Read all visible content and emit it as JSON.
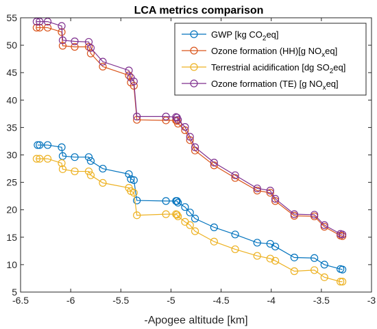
{
  "chart_data": {
    "type": "line",
    "title": "LCA metrics comparison",
    "xlabel": "-Apogee altitude [km]",
    "ylabel": "",
    "xlim": [
      -6.5,
      -3
    ],
    "ylim": [
      5,
      55
    ],
    "xticks": [
      "-6.5",
      "-6",
      "-5.5",
      "-5",
      "-4.5",
      "-4",
      "-3.5",
      "-3"
    ],
    "yticks": [
      "5",
      "10",
      "15",
      "20",
      "25",
      "30",
      "35",
      "40",
      "45",
      "50",
      "55"
    ],
    "grid": false,
    "legend_position": "top-right",
    "series": [
      {
        "name": "GWP [kg CO2eq]",
        "legend": {
          "main": "GWP [kg CO",
          "sub": "2",
          "tail": "eq]"
        },
        "color": "#0072BD",
        "x": [
          -6.33,
          -6.31,
          -6.23,
          -6.09,
          -6.08,
          -5.96,
          -5.82,
          -5.8,
          -5.68,
          -5.42,
          -5.4,
          -5.37,
          -5.34,
          -5.05,
          -4.95,
          -4.94,
          -4.93,
          -4.86,
          -4.81,
          -4.76,
          -4.57,
          -4.36,
          -4.14,
          -4.01,
          -3.96,
          -3.77,
          -3.57,
          -3.47,
          -3.31,
          -3.29
        ],
        "y": [
          31.8,
          31.8,
          31.8,
          31.4,
          29.8,
          29.6,
          29.6,
          28.9,
          27.5,
          26.5,
          25.6,
          25.4,
          21.7,
          21.6,
          21.6,
          21.6,
          21.3,
          20.5,
          19.5,
          18.4,
          16.8,
          15.5,
          14.0,
          13.8,
          13.3,
          11.3,
          11.2,
          10.0,
          9.2,
          9.1
        ]
      },
      {
        "name": "Ozone formation (HH)[g NOxeq]",
        "legend": {
          "main": "Ozone formation (HH)[g NO",
          "sub": "x",
          "tail": "eq]"
        },
        "color": "#D95319",
        "x": [
          -6.34,
          -6.31,
          -6.23,
          -6.09,
          -6.08,
          -5.96,
          -5.82,
          -5.8,
          -5.68,
          -5.42,
          -5.4,
          -5.37,
          -5.34,
          -5.05,
          -4.95,
          -4.94,
          -4.93,
          -4.86,
          -4.81,
          -4.76,
          -4.57,
          -4.36,
          -4.14,
          -4.01,
          -3.96,
          -3.77,
          -3.57,
          -3.47,
          -3.31,
          -3.29
        ],
        "y": [
          53.2,
          53.2,
          53.2,
          52.4,
          49.9,
          49.7,
          49.7,
          48.5,
          46.1,
          44.5,
          43.2,
          42.6,
          36.4,
          36.3,
          36.3,
          36.2,
          35.7,
          34.5,
          32.7,
          30.8,
          28.1,
          25.8,
          23.5,
          23.1,
          21.6,
          18.9,
          18.8,
          16.9,
          15.3,
          15.2
        ]
      },
      {
        "name": "Terrestrial acidification [dg SO2eq]",
        "legend": {
          "main": "Terrestrial acidification [dg SO",
          "sub": "2",
          "tail": "eq]"
        },
        "color": "#EDB120",
        "x": [
          -6.34,
          -6.31,
          -6.23,
          -6.09,
          -6.08,
          -5.96,
          -5.82,
          -5.8,
          -5.68,
          -5.42,
          -5.4,
          -5.37,
          -5.34,
          -5.05,
          -4.95,
          -4.94,
          -4.93,
          -4.86,
          -4.81,
          -4.76,
          -4.57,
          -4.36,
          -4.14,
          -4.01,
          -3.96,
          -3.77,
          -3.57,
          -3.47,
          -3.31,
          -3.29
        ],
        "y": [
          29.3,
          29.3,
          29.3,
          28.5,
          27.4,
          27.0,
          27.0,
          26.3,
          24.9,
          24.0,
          23.4,
          23.1,
          19.0,
          19.2,
          19.2,
          19.1,
          18.8,
          17.8,
          17.2,
          16.1,
          14.2,
          12.8,
          11.6,
          11.1,
          10.7,
          8.8,
          9.0,
          7.7,
          6.9,
          6.9
        ]
      },
      {
        "name": "Ozone formation (TE) [g NOxeq]",
        "legend": {
          "main": "Ozone formation (TE) [g NO",
          "sub": "x",
          "tail": "eq]"
        },
        "color": "#7E2F8E",
        "x": [
          -6.34,
          -6.31,
          -6.23,
          -6.09,
          -6.08,
          -5.96,
          -5.82,
          -5.8,
          -5.68,
          -5.42,
          -5.4,
          -5.37,
          -5.34,
          -5.05,
          -4.95,
          -4.94,
          -4.93,
          -4.86,
          -4.81,
          -4.76,
          -4.57,
          -4.36,
          -4.14,
          -4.01,
          -3.96,
          -3.77,
          -3.57,
          -3.47,
          -3.31,
          -3.29
        ],
        "y": [
          54.3,
          54.3,
          54.3,
          53.5,
          50.9,
          50.7,
          50.6,
          49.5,
          47.0,
          45.4,
          44.1,
          43.4,
          37.0,
          37.0,
          36.9,
          36.8,
          36.4,
          35.1,
          33.3,
          31.4,
          28.6,
          26.3,
          23.9,
          23.5,
          22.0,
          19.2,
          19.1,
          17.2,
          15.6,
          15.5
        ]
      }
    ]
  }
}
